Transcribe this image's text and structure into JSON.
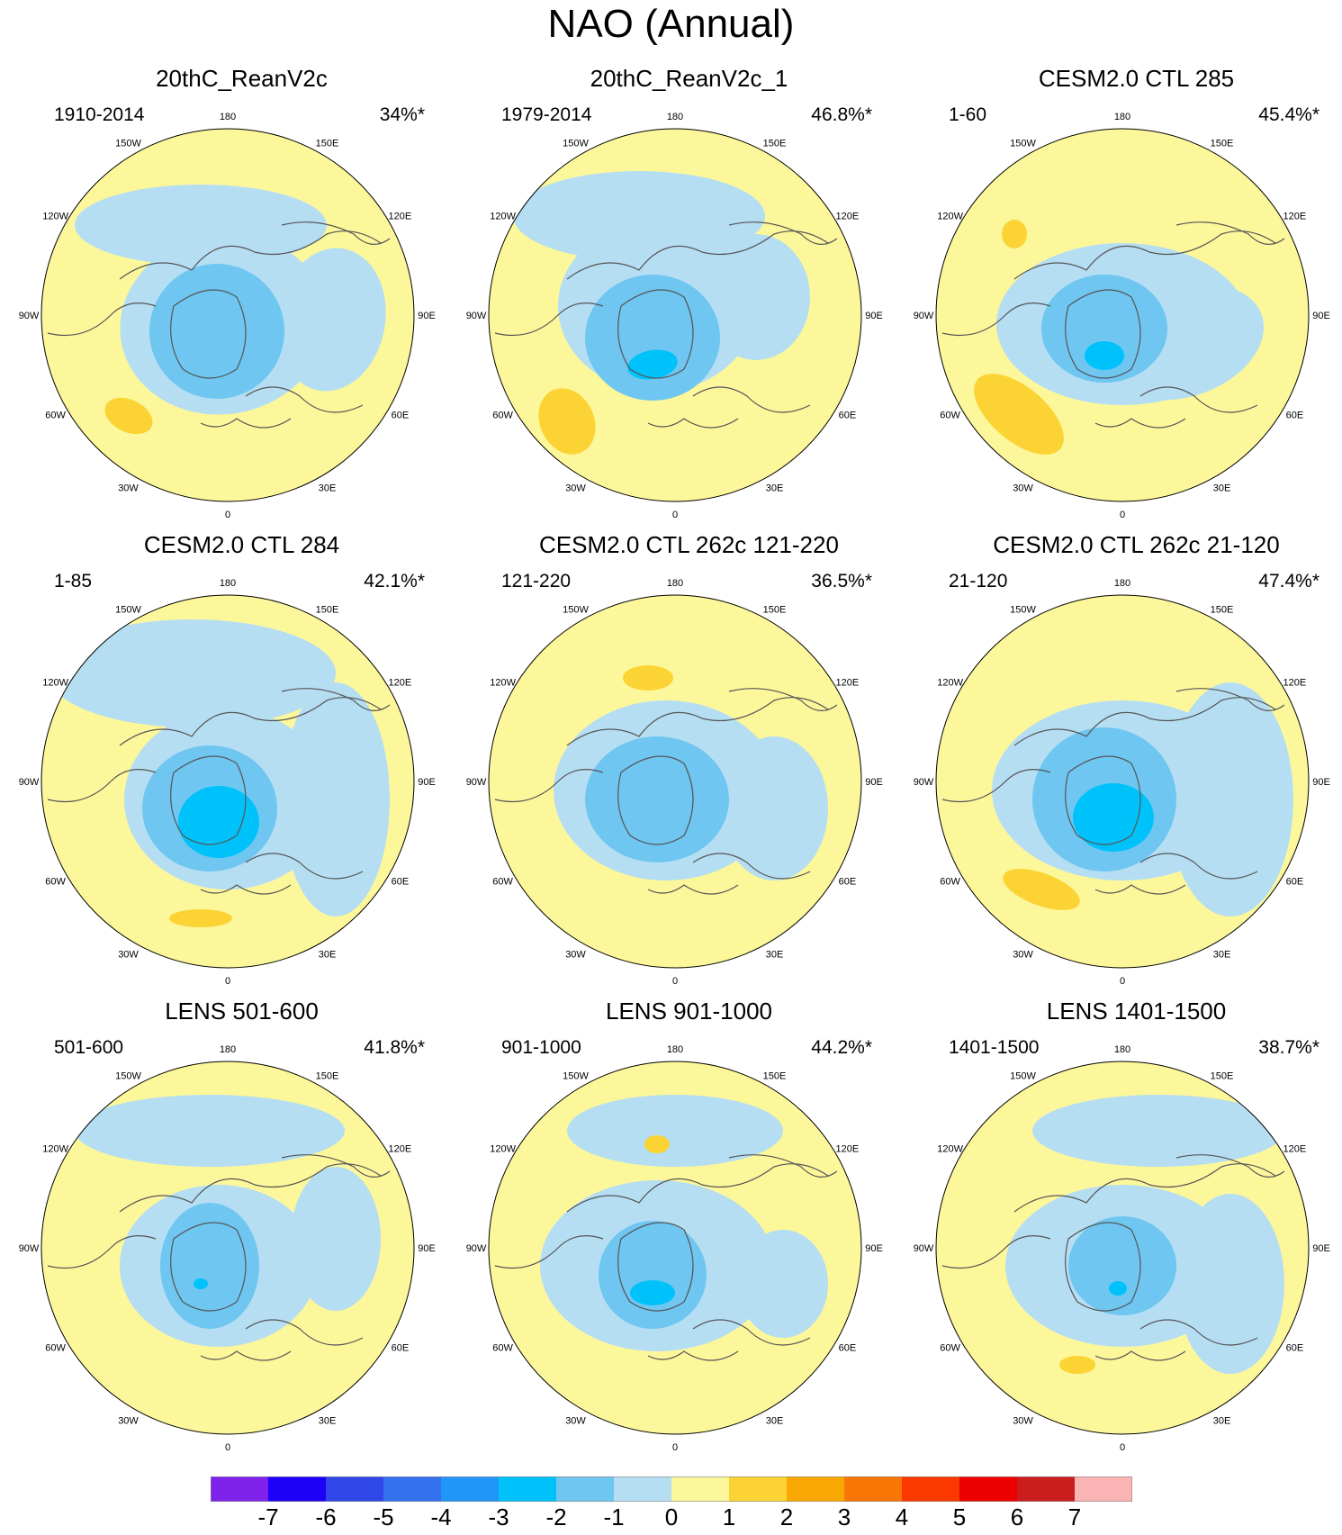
{
  "title": "NAO (Annual)",
  "lon_labels": [
    "180",
    "150E",
    "120E",
    "90E",
    "60E",
    "30E",
    "0",
    "30W",
    "60W",
    "90W",
    "120W",
    "150W"
  ],
  "panels": [
    {
      "title": "20thC_ReanV2c",
      "period": "1910-2014",
      "variance": "34%*"
    },
    {
      "title": "20thC_ReanV2c_1",
      "period": "1979-2014",
      "variance": "46.8%*"
    },
    {
      "title": "CESM2.0 CTL 285",
      "period": "1-60",
      "variance": "45.4%*"
    },
    {
      "title": "CESM2.0 CTL 284",
      "period": "1-85",
      "variance": "42.1%*"
    },
    {
      "title": "CESM2.0 CTL 262c 121-220",
      "period": "121-220",
      "variance": "36.5%*"
    },
    {
      "title": "CESM2.0 CTL 262c 21-120",
      "period": "21-120",
      "variance": "47.4%*"
    },
    {
      "title": "LENS 501-600",
      "period": "501-600",
      "variance": "41.8%*"
    },
    {
      "title": "LENS 901-1000",
      "period": "901-1000",
      "variance": "44.2%*"
    },
    {
      "title": "LENS 1401-1500",
      "period": "1401-1500",
      "variance": "38.7%*"
    }
  ],
  "colorbar": {
    "ticks": [
      "-7",
      "-6",
      "-5",
      "-4",
      "-3",
      "-2",
      "-1",
      "0",
      "1",
      "2",
      "3",
      "4",
      "5",
      "6",
      "7"
    ],
    "colors": [
      "#7f22ec",
      "#1e00f8",
      "#2f47e9",
      "#3471ee",
      "#1f96f8",
      "#00c2fb",
      "#6ec6f1",
      "#b5def3",
      "#fdf79b",
      "#fbd334",
      "#f8a703",
      "#f97606",
      "#fb3800",
      "#ee0000",
      "#cc1d1d",
      "#fab4b4"
    ]
  },
  "palette": {
    "positive": "#fdf79b",
    "strong_positive": "#fbd334",
    "negative": "#b5def3",
    "moderate_negative": "#6ec6f1",
    "strong_negative": "#00c2fb",
    "coastline": "#555555",
    "outline": "#000000"
  }
}
